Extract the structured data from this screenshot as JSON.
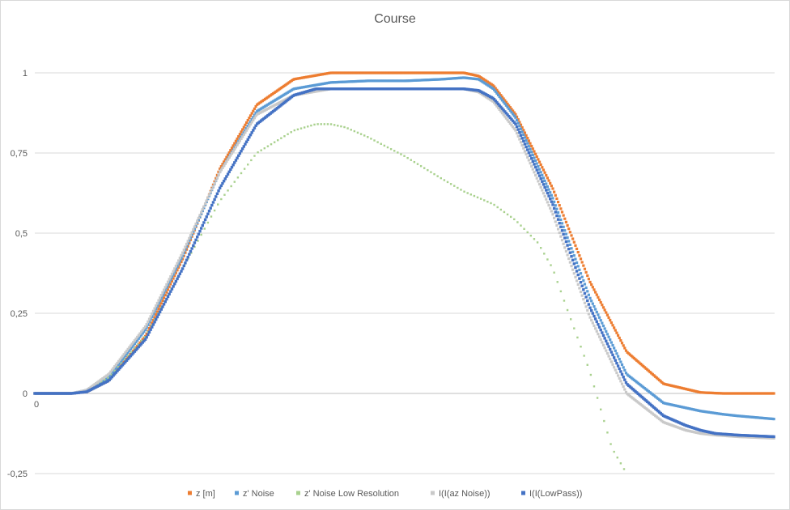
{
  "chart_data": {
    "type": "scatter",
    "title": "Course",
    "xlabel": "",
    "ylabel": "",
    "x_tick_labels": [
      "0"
    ],
    "xlim": [
      0,
      100
    ],
    "ylim": [
      -0.25,
      1.25
    ],
    "y_ticks": [
      -0.25,
      0,
      0.25,
      0.5,
      0.75,
      1
    ],
    "y_tick_labels": [
      "-0,25",
      "0",
      "0,25",
      "0,5",
      "0,75",
      "1"
    ],
    "grid": true,
    "legend": "bottom",
    "series": [
      {
        "name": "z [m]",
        "color": "#ed7d31",
        "x": [
          0,
          5,
          7,
          10,
          15,
          20,
          25,
          30,
          35,
          40,
          44,
          50,
          55,
          58,
          60,
          62,
          65,
          70,
          75,
          80,
          85,
          90,
          93,
          100
        ],
        "y": [
          0,
          0,
          0.005,
          0.04,
          0.18,
          0.42,
          0.7,
          0.9,
          0.98,
          1.0,
          1.0,
          1.0,
          1.0,
          1.0,
          0.99,
          0.96,
          0.87,
          0.64,
          0.35,
          0.13,
          0.03,
          0.003,
          0,
          0
        ]
      },
      {
        "name": "z' Noise",
        "color": "#5b9bd5",
        "x": [
          0,
          5,
          7,
          10,
          15,
          20,
          25,
          30,
          35,
          40,
          45,
          50,
          55,
          58,
          60,
          62,
          65,
          70,
          75,
          80,
          85,
          90,
          93,
          95,
          100
        ],
        "y": [
          0,
          0,
          0.01,
          0.05,
          0.2,
          0.43,
          0.69,
          0.88,
          0.95,
          0.97,
          0.975,
          0.975,
          0.98,
          0.985,
          0.98,
          0.95,
          0.86,
          0.61,
          0.3,
          0.06,
          -0.03,
          -0.055,
          -0.065,
          -0.07,
          -0.08
        ]
      },
      {
        "name": "z' Noise Low Resolution",
        "color": "#a9d18e",
        "x": [
          0,
          5,
          7,
          10,
          15,
          20,
          25,
          30,
          35,
          38,
          40,
          42,
          45,
          50,
          55,
          58,
          60,
          62,
          65,
          68,
          70,
          72,
          75,
          77,
          78,
          80
        ],
        "y": [
          0,
          0,
          0.01,
          0.05,
          0.18,
          0.39,
          0.6,
          0.75,
          0.82,
          0.84,
          0.84,
          0.83,
          0.8,
          0.74,
          0.67,
          0.63,
          0.61,
          0.59,
          0.54,
          0.47,
          0.39,
          0.26,
          0.07,
          -0.09,
          -0.17,
          -0.25
        ]
      },
      {
        "name": "I(I(az Noise))",
        "color": "#c9c9c9",
        "x": [
          0,
          5,
          7,
          10,
          15,
          20,
          25,
          30,
          35,
          40,
          45,
          50,
          55,
          58,
          60,
          62,
          65,
          70,
          75,
          80,
          85,
          88,
          90,
          92,
          95,
          100
        ],
        "y": [
          0,
          0,
          0.01,
          0.06,
          0.21,
          0.44,
          0.69,
          0.87,
          0.93,
          0.95,
          0.95,
          0.95,
          0.95,
          0.95,
          0.94,
          0.91,
          0.82,
          0.56,
          0.24,
          0.0,
          -0.09,
          -0.115,
          -0.125,
          -0.13,
          -0.135,
          -0.14
        ]
      },
      {
        "name": "I(I(LowPass))",
        "color": "#4472c4",
        "x": [
          0,
          5,
          7,
          10,
          15,
          20,
          25,
          30,
          35,
          38,
          40,
          45,
          50,
          55,
          58,
          60,
          62,
          65,
          70,
          75,
          80,
          85,
          88,
          90,
          92,
          95,
          100
        ],
        "y": [
          0,
          0,
          0.005,
          0.04,
          0.17,
          0.39,
          0.64,
          0.84,
          0.93,
          0.95,
          0.95,
          0.95,
          0.95,
          0.95,
          0.95,
          0.945,
          0.92,
          0.84,
          0.59,
          0.27,
          0.03,
          -0.07,
          -0.1,
          -0.115,
          -0.125,
          -0.13,
          -0.135
        ]
      }
    ]
  }
}
